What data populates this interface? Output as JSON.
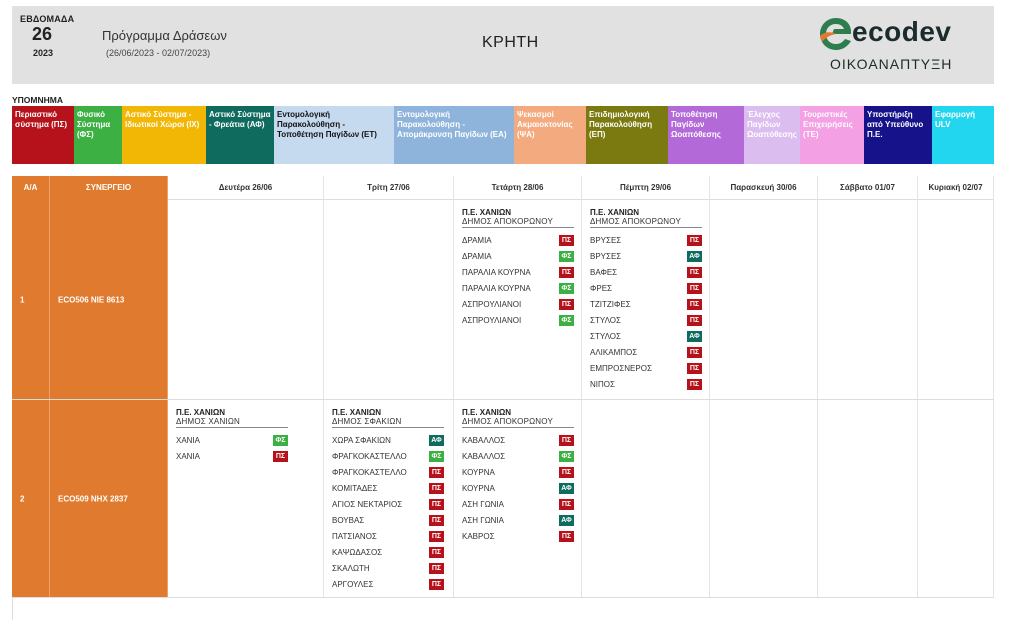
{
  "header": {
    "week_label": "ΕΒΔΟΜΑΔΑ",
    "week_number": "26",
    "year": "2023",
    "program_title": "Πρόγραμμα Δράσεων",
    "date_range": "(26/06/2023 - 02/07/2023)",
    "region": "ΚΡΗΤΗ",
    "logo_word": "ecodev",
    "logo_sub": "ΟΙΚΟΑΝΑΠΤΥΞΗ"
  },
  "legend": {
    "title": "ΥΠΟΜΝΗΜΑ",
    "items": [
      {
        "label": "Περιαστικό σύστημα (ΠΣ)",
        "bg": "#b5121b",
        "fg": "#ffffff",
        "w": 62
      },
      {
        "label": "Φυσικό Σύστημα (ΦΣ)",
        "bg": "#3cb043",
        "fg": "#ffffff",
        "w": 48
      },
      {
        "label": "Αστικό Σύστημα - Ιδιωτικοί Χώροι (ΙΧ)",
        "bg": "#f2b705",
        "fg": "#ffffff",
        "w": 84
      },
      {
        "label": "Αστικό Σύστημα - Φρεάτια (ΑΦ)",
        "bg": "#0f6b5e",
        "fg": "#ffffff",
        "w": 68
      },
      {
        "label": "Εντομολογική Παρακολούθηση - Τοποθέτηση Παγίδων (ΕΤ)",
        "bg": "#c5d9ef",
        "fg": "#111111",
        "w": 120
      },
      {
        "label": "Εντομολογική Παρακολούθηση - Απομάκρυνση Παγίδων (ΕΑ)",
        "bg": "#8fb4dc",
        "fg": "#ffffff",
        "w": 120
      },
      {
        "label": "Ψεκασμοί Ακμαιοκτονίας (ΨΑ)",
        "bg": "#f2aa7e",
        "fg": "#ffffff",
        "w": 72
      },
      {
        "label": "Επιδημιολογική Παρακολούθηση (ΕΠ)",
        "bg": "#7a7a10",
        "fg": "#ffffff",
        "w": 82
      },
      {
        "label": "Τοποθέτηση Παγίδων Ωοαπόθεσης",
        "bg": "#b36ad8",
        "fg": "#ffffff",
        "w": 76
      },
      {
        "label": "Έλεγχος Παγίδων Ωοαπόθεσης",
        "bg": "#dcbdf0",
        "fg": "#ffffff",
        "w": 56
      },
      {
        "label": "Τουριστικές Επιχειρήσεις (ΤΕ)",
        "bg": "#f3a0e4",
        "fg": "#ffffff",
        "w": 64
      },
      {
        "label": "Υποστήριξη από Υπεύθυνο Π.Ε.",
        "bg": "#16138a",
        "fg": "#ffffff",
        "w": 68
      },
      {
        "label": "Εφαρμογή ULV",
        "bg": "#22d6f0",
        "fg": "#ffffff",
        "w": 62
      }
    ]
  },
  "table": {
    "headers": [
      "Α/Α",
      "ΣΥΝΕΡΓΕΙΟ",
      "Δευτέρα 26/06",
      "Τρίτη 27/06",
      "Τετάρτη 28/06",
      "Πέμπτη 29/06",
      "Παρασκευή 30/06",
      "Σάββατο 01/07",
      "Κυριακή 02/07"
    ],
    "badge_colors": {
      "ΠΣ": "#b5121b",
      "ΦΣ": "#3cb043",
      "ΑΦ": "#0f6b5e"
    },
    "rows": [
      {
        "aa": "1",
        "crew": "ECO506  ΝΙΕ 8613",
        "days": [
          null,
          null,
          {
            "pe": "Π.Ε. ΧΑΝΙΩΝ",
            "dimos": "ΔΗΜΟΣ ΑΠΟΚΟΡΩΝΟΥ",
            "items": [
              {
                "name": "ΔΡΑΜΙΑ",
                "code": "ΠΣ"
              },
              {
                "name": "ΔΡΑΜΙΑ",
                "code": "ΦΣ"
              },
              {
                "name": "ΠΑΡΑΛΙΑ ΚΟΥΡΝΑ",
                "code": "ΠΣ"
              },
              {
                "name": "ΠΑΡΑΛΙΑ ΚΟΥΡΝΑ",
                "code": "ΦΣ"
              },
              {
                "name": "ΑΣΠΡΟΥΛΙΑΝΟΙ",
                "code": "ΠΣ"
              },
              {
                "name": "ΑΣΠΡΟΥΛΙΑΝΟΙ",
                "code": "ΦΣ"
              }
            ]
          },
          {
            "pe": "Π.Ε. ΧΑΝΙΩΝ",
            "dimos": "ΔΗΜΟΣ ΑΠΟΚΟΡΩΝΟΥ",
            "items": [
              {
                "name": "ΒΡΥΣΕΣ",
                "code": "ΠΣ"
              },
              {
                "name": "ΒΡΥΣΕΣ",
                "code": "ΑΦ"
              },
              {
                "name": "ΒΑΦΕΣ",
                "code": "ΠΣ"
              },
              {
                "name": "ΦΡΕΣ",
                "code": "ΠΣ"
              },
              {
                "name": "ΤΖΙΤΖΙΦΕΣ",
                "code": "ΠΣ"
              },
              {
                "name": "ΣΤΥΛΟΣ",
                "code": "ΠΣ"
              },
              {
                "name": "ΣΤΥΛΟΣ",
                "code": "ΑΦ"
              },
              {
                "name": "ΑΛΙΚΑΜΠΟΣ",
                "code": "ΠΣ"
              },
              {
                "name": "ΕΜΠΡΟΣΝΕΡΟΣ",
                "code": "ΠΣ"
              },
              {
                "name": "ΝΙΠΟΣ",
                "code": "ΠΣ"
              }
            ]
          },
          null,
          null,
          null
        ]
      },
      {
        "aa": "2",
        "crew": "ECO509  ΝΗΧ 2837",
        "days": [
          {
            "pe": "Π.Ε. ΧΑΝΙΩΝ",
            "dimos": "ΔΗΜΟΣ ΧΑΝΙΩΝ",
            "items": [
              {
                "name": "ΧΑΝΙΑ",
                "code": "ΦΣ"
              },
              {
                "name": "ΧΑΝΙΑ",
                "code": "ΠΣ"
              }
            ]
          },
          {
            "pe": "Π.Ε. ΧΑΝΙΩΝ",
            "dimos": "ΔΗΜΟΣ ΣΦΑΚΙΩΝ",
            "items": [
              {
                "name": "ΧΩΡΑ ΣΦΑΚΙΩΝ",
                "code": "ΑΦ"
              },
              {
                "name": "ΦΡΑΓΚΟΚΑΣΤΕΛΛΟ",
                "code": "ΦΣ"
              },
              {
                "name": "ΦΡΑΓΚΟΚΑΣΤΕΛΛΟ",
                "code": "ΠΣ"
              },
              {
                "name": "ΚΟΜΙΤΑΔΕΣ",
                "code": "ΠΣ"
              },
              {
                "name": "ΑΓΙΟΣ ΝΕΚΤΑΡΙΟΣ",
                "code": "ΠΣ"
              },
              {
                "name": "ΒΟΥΒΑΣ",
                "code": "ΠΣ"
              },
              {
                "name": "ΠΑΤΣΙΑΝΟΣ",
                "code": "ΠΣ"
              },
              {
                "name": "ΚΑΨΩΔΑΣΟΣ",
                "code": "ΠΣ"
              },
              {
                "name": "ΣΚΑΛΩΤΗ",
                "code": "ΠΣ"
              },
              {
                "name": "ΑΡΓΟΥΛΕΣ",
                "code": "ΠΣ"
              }
            ]
          },
          {
            "pe": "Π.Ε. ΧΑΝΙΩΝ",
            "dimos": "ΔΗΜΟΣ ΑΠΟΚΟΡΩΝΟΥ",
            "items": [
              {
                "name": "ΚΑΒΑΛΛΟΣ",
                "code": "ΠΣ"
              },
              {
                "name": "ΚΑΒΑΛΛΟΣ",
                "code": "ΦΣ"
              },
              {
                "name": "ΚΟΥΡΝΑ",
                "code": "ΠΣ"
              },
              {
                "name": "ΚΟΥΡΝΑ",
                "code": "ΑΦ"
              },
              {
                "name": "ΑΣΗ ΓΩΝΙΑ",
                "code": "ΠΣ"
              },
              {
                "name": "ΑΣΗ ΓΩΝΙΑ",
                "code": "ΑΦ"
              },
              {
                "name": "ΚΑΒΡΟΣ",
                "code": "ΠΣ"
              }
            ]
          },
          null,
          null,
          null,
          null
        ]
      }
    ]
  }
}
